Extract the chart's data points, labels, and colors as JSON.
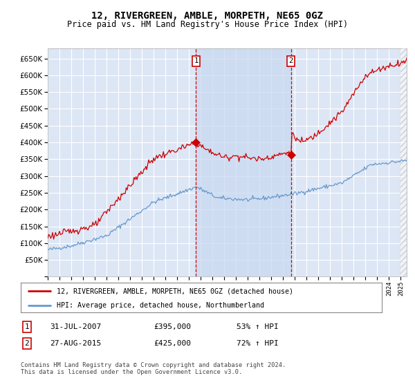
{
  "title": "12, RIVERGREEN, AMBLE, MORPETH, NE65 0GZ",
  "subtitle": "Price paid vs. HM Land Registry's House Price Index (HPI)",
  "ylim": [
    0,
    680000
  ],
  "xlim_start": 1995.0,
  "xlim_end": 2025.5,
  "marker1_x": 2007.6,
  "marker1_label": "1",
  "marker2_x": 2015.67,
  "marker2_label": "2",
  "legend_line1": "12, RIVERGREEN, AMBLE, MORPETH, NE65 0GZ (detached house)",
  "legend_line2": "HPI: Average price, detached house, Northumberland",
  "sale1_date": "31-JUL-2007",
  "sale1_price": "£395,000",
  "sale1_hpi": "53% ↑ HPI",
  "sale2_date": "27-AUG-2015",
  "sale2_price": "£425,000",
  "sale2_hpi": "72% ↑ HPI",
  "footnote": "Contains HM Land Registry data © Crown copyright and database right 2024.\nThis data is licensed under the Open Government Licence v3.0.",
  "line_color_red": "#cc0000",
  "line_color_blue": "#6699cc",
  "background_color": "#ffffff",
  "plot_bg_color": "#dde6f5",
  "grid_color": "#ffffff",
  "marker_box_color": "#cc0000",
  "shade_color": "#c8d8f0"
}
